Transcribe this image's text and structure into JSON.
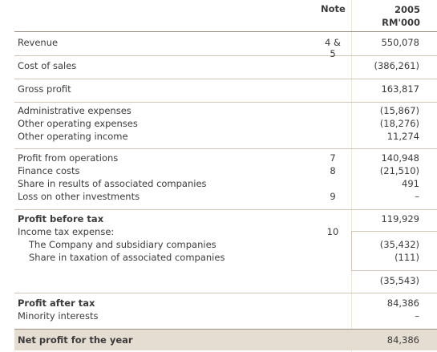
{
  "header": {
    "note": "Note",
    "year": "2005",
    "unit": "RM'000"
  },
  "rows": [
    {
      "label": "Revenue",
      "note": "4 & 5",
      "value": "550,078"
    },
    {
      "label": "Cost of sales",
      "note": "",
      "value": "(386,261)"
    },
    {
      "label": "Gross profit",
      "note": "",
      "value": "163,817"
    },
    {
      "label": "Administrative expenses",
      "note": "",
      "value": "(15,867)"
    },
    {
      "label": "Other operating expenses",
      "note": "",
      "value": "(18,276)"
    },
    {
      "label": "Other operating income",
      "note": "",
      "value": "11,274"
    },
    {
      "label": "Profit from operations",
      "note": "7",
      "value": "140,948"
    },
    {
      "label": "Finance costs",
      "note": "8",
      "value": "(21,510)"
    },
    {
      "label": "Share in results of associated companies",
      "note": "",
      "value": "491"
    },
    {
      "label": "Loss on other investments",
      "note": "9",
      "value": "–"
    },
    {
      "label": "Profit before tax",
      "note": "",
      "value": "119,929"
    },
    {
      "label": "Income tax expense:",
      "note": "10",
      "value": ""
    },
    {
      "label": "The Company and subsidiary companies",
      "note": "",
      "value": "(35,432)"
    },
    {
      "label": "Share in taxation of associated companies",
      "note": "",
      "value": "(111)"
    },
    {
      "label": "",
      "note": "",
      "value": "(35,543)"
    },
    {
      "label": "Profit after tax",
      "note": "",
      "value": "84,386"
    },
    {
      "label": "Minority interests",
      "note": "",
      "value": "–"
    },
    {
      "label": "Net profit for the year",
      "note": "",
      "value": "84,386"
    }
  ]
}
